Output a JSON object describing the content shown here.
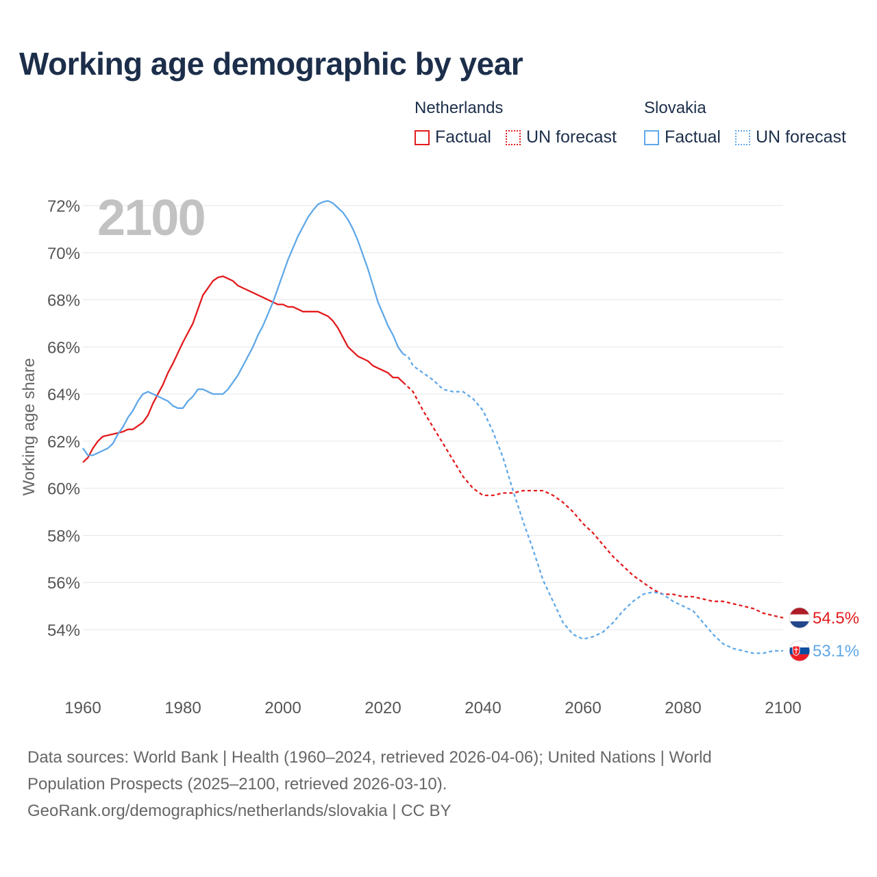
{
  "title": "Working age demographic by year",
  "legend": {
    "netherlands": {
      "name": "Netherlands",
      "factual": "Factual",
      "forecast": "UN forecast"
    },
    "slovakia": {
      "name": "Slovakia",
      "factual": "Factual",
      "forecast": "UN forecast"
    }
  },
  "year_watermark": "2100",
  "source": {
    "line1": "Data sources: World Bank | Health (1960–2024, retrieved 2026-04-06); United Nations | World",
    "line2": "Population Prospects (2025–2100, retrieved 2026-03-10).",
    "line3": "GeoRank.org/demographics/netherlands/slovakia | CC BY"
  },
  "colors": {
    "netherlands": "#e31a1c",
    "slovakia": "#5fa8e8",
    "title": "#1c2e4a",
    "grid": "#e6e6e6"
  },
  "chart_data": {
    "type": "line",
    "title": "Working age demographic by year",
    "xlabel": "",
    "ylabel": "Working age share",
    "xlim": [
      1960,
      2100
    ],
    "ylim": [
      52,
      72.5
    ],
    "x_ticks": [
      1960,
      1980,
      2000,
      2020,
      2040,
      2060,
      2080,
      2100
    ],
    "y_ticks": [
      54,
      56,
      58,
      60,
      62,
      64,
      66,
      68,
      70,
      72
    ],
    "y_tick_labels": [
      "54%",
      "56%",
      "58%",
      "60%",
      "62%",
      "64%",
      "66%",
      "68%",
      "70%",
      "72%"
    ],
    "factual_end_year": 2024,
    "series": [
      {
        "name": "Netherlands",
        "color": "#e31a1c",
        "end_label": "54.5%",
        "points": [
          [
            1960,
            61.1
          ],
          [
            1961,
            61.3
          ],
          [
            1962,
            61.7
          ],
          [
            1963,
            62.0
          ],
          [
            1964,
            62.2
          ],
          [
            1966,
            62.3
          ],
          [
            1968,
            62.4
          ],
          [
            1969,
            62.5
          ],
          [
            1970,
            62.5
          ],
          [
            1972,
            62.8
          ],
          [
            1973,
            63.1
          ],
          [
            1974,
            63.6
          ],
          [
            1975,
            64.0
          ],
          [
            1976,
            64.4
          ],
          [
            1977,
            64.9
          ],
          [
            1978,
            65.3
          ],
          [
            1980,
            66.2
          ],
          [
            1982,
            67.0
          ],
          [
            1983,
            67.6
          ],
          [
            1984,
            68.2
          ],
          [
            1985,
            68.5
          ],
          [
            1986,
            68.8
          ],
          [
            1987,
            68.95
          ],
          [
            1988,
            69.0
          ],
          [
            1989,
            68.9
          ],
          [
            1990,
            68.8
          ],
          [
            1991,
            68.6
          ],
          [
            1992,
            68.5
          ],
          [
            1994,
            68.3
          ],
          [
            1996,
            68.1
          ],
          [
            1998,
            67.9
          ],
          [
            1999,
            67.8
          ],
          [
            2000,
            67.8
          ],
          [
            2001,
            67.7
          ],
          [
            2002,
            67.7
          ],
          [
            2003,
            67.6
          ],
          [
            2004,
            67.5
          ],
          [
            2006,
            67.5
          ],
          [
            2007,
            67.5
          ],
          [
            2008,
            67.4
          ],
          [
            2009,
            67.3
          ],
          [
            2010,
            67.1
          ],
          [
            2011,
            66.8
          ],
          [
            2012,
            66.4
          ],
          [
            2013,
            66.0
          ],
          [
            2014,
            65.8
          ],
          [
            2015,
            65.6
          ],
          [
            2016,
            65.5
          ],
          [
            2017,
            65.4
          ],
          [
            2018,
            65.2
          ],
          [
            2019,
            65.1
          ],
          [
            2020,
            65.0
          ],
          [
            2021,
            64.9
          ],
          [
            2022,
            64.7
          ],
          [
            2023,
            64.7
          ],
          [
            2024,
            64.5
          ],
          [
            2026,
            64.1
          ],
          [
            2028,
            63.3
          ],
          [
            2030,
            62.6
          ],
          [
            2032,
            61.9
          ],
          [
            2034,
            61.2
          ],
          [
            2036,
            60.5
          ],
          [
            2038,
            60.0
          ],
          [
            2040,
            59.7
          ],
          [
            2042,
            59.7
          ],
          [
            2044,
            59.8
          ],
          [
            2046,
            59.8
          ],
          [
            2048,
            59.9
          ],
          [
            2050,
            59.9
          ],
          [
            2052,
            59.9
          ],
          [
            2054,
            59.7
          ],
          [
            2056,
            59.4
          ],
          [
            2058,
            59.0
          ],
          [
            2060,
            58.5
          ],
          [
            2062,
            58.1
          ],
          [
            2064,
            57.6
          ],
          [
            2066,
            57.1
          ],
          [
            2068,
            56.7
          ],
          [
            2070,
            56.3
          ],
          [
            2072,
            56.0
          ],
          [
            2074,
            55.7
          ],
          [
            2076,
            55.5
          ],
          [
            2078,
            55.5
          ],
          [
            2080,
            55.4
          ],
          [
            2082,
            55.4
          ],
          [
            2084,
            55.3
          ],
          [
            2086,
            55.2
          ],
          [
            2088,
            55.2
          ],
          [
            2090,
            55.1
          ],
          [
            2092,
            55.0
          ],
          [
            2094,
            54.9
          ],
          [
            2096,
            54.7
          ],
          [
            2098,
            54.6
          ],
          [
            2100,
            54.5
          ]
        ]
      },
      {
        "name": "Slovakia",
        "color": "#5fa8e8",
        "end_label": "53.1%",
        "points": [
          [
            1960,
            61.7
          ],
          [
            1961,
            61.4
          ],
          [
            1962,
            61.4
          ],
          [
            1963,
            61.5
          ],
          [
            1964,
            61.6
          ],
          [
            1965,
            61.7
          ],
          [
            1966,
            61.9
          ],
          [
            1967,
            62.3
          ],
          [
            1968,
            62.6
          ],
          [
            1969,
            63.0
          ],
          [
            1970,
            63.3
          ],
          [
            1971,
            63.7
          ],
          [
            1972,
            64.0
          ],
          [
            1973,
            64.1
          ],
          [
            1974,
            64.0
          ],
          [
            1975,
            63.9
          ],
          [
            1976,
            63.8
          ],
          [
            1977,
            63.7
          ],
          [
            1978,
            63.5
          ],
          [
            1979,
            63.4
          ],
          [
            1980,
            63.4
          ],
          [
            1981,
            63.7
          ],
          [
            1982,
            63.9
          ],
          [
            1983,
            64.2
          ],
          [
            1984,
            64.2
          ],
          [
            1985,
            64.1
          ],
          [
            1986,
            64.0
          ],
          [
            1987,
            64.0
          ],
          [
            1988,
            64.0
          ],
          [
            1989,
            64.2
          ],
          [
            1990,
            64.5
          ],
          [
            1991,
            64.8
          ],
          [
            1992,
            65.2
          ],
          [
            1993,
            65.6
          ],
          [
            1994,
            66.0
          ],
          [
            1995,
            66.5
          ],
          [
            1996,
            66.9
          ],
          [
            1997,
            67.4
          ],
          [
            1998,
            67.9
          ],
          [
            1999,
            68.5
          ],
          [
            2000,
            69.1
          ],
          [
            2001,
            69.7
          ],
          [
            2002,
            70.2
          ],
          [
            2003,
            70.7
          ],
          [
            2004,
            71.1
          ],
          [
            2005,
            71.5
          ],
          [
            2006,
            71.8
          ],
          [
            2007,
            72.05
          ],
          [
            2008,
            72.15
          ],
          [
            2009,
            72.2
          ],
          [
            2010,
            72.1
          ],
          [
            2011,
            71.9
          ],
          [
            2012,
            71.7
          ],
          [
            2013,
            71.4
          ],
          [
            2014,
            71.0
          ],
          [
            2015,
            70.5
          ],
          [
            2016,
            69.9
          ],
          [
            2017,
            69.3
          ],
          [
            2018,
            68.6
          ],
          [
            2019,
            67.9
          ],
          [
            2020,
            67.4
          ],
          [
            2021,
            66.9
          ],
          [
            2022,
            66.5
          ],
          [
            2023,
            66.0
          ],
          [
            2024,
            65.7
          ],
          [
            2025,
            65.6
          ],
          [
            2026,
            65.2
          ],
          [
            2028,
            64.9
          ],
          [
            2030,
            64.6
          ],
          [
            2032,
            64.2
          ],
          [
            2034,
            64.1
          ],
          [
            2036,
            64.1
          ],
          [
            2038,
            63.8
          ],
          [
            2040,
            63.3
          ],
          [
            2042,
            62.4
          ],
          [
            2044,
            61.3
          ],
          [
            2046,
            59.9
          ],
          [
            2048,
            58.6
          ],
          [
            2050,
            57.4
          ],
          [
            2052,
            56.1
          ],
          [
            2054,
            55.2
          ],
          [
            2056,
            54.3
          ],
          [
            2058,
            53.8
          ],
          [
            2060,
            53.6
          ],
          [
            2062,
            53.7
          ],
          [
            2064,
            53.9
          ],
          [
            2066,
            54.3
          ],
          [
            2068,
            54.8
          ],
          [
            2070,
            55.2
          ],
          [
            2072,
            55.5
          ],
          [
            2074,
            55.6
          ],
          [
            2076,
            55.5
          ],
          [
            2078,
            55.2
          ],
          [
            2080,
            55.0
          ],
          [
            2082,
            54.8
          ],
          [
            2084,
            54.3
          ],
          [
            2086,
            53.8
          ],
          [
            2088,
            53.4
          ],
          [
            2090,
            53.2
          ],
          [
            2092,
            53.1
          ],
          [
            2094,
            53.0
          ],
          [
            2096,
            53.0
          ],
          [
            2098,
            53.1
          ],
          [
            2100,
            53.1
          ]
        ]
      }
    ]
  }
}
